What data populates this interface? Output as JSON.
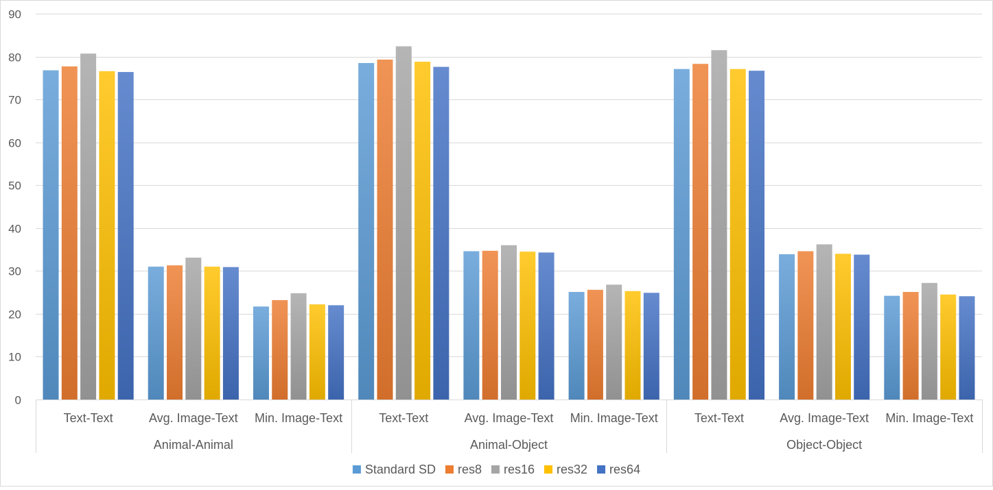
{
  "chart_data": {
    "type": "bar",
    "groups": [
      "Animal-Animal",
      "Animal-Object",
      "Object-Object"
    ],
    "subcategories": [
      "Text-Text",
      "Avg. Image-Text",
      "Min. Image-Text"
    ],
    "series": [
      {
        "name": "Standard SD",
        "color": "#5b9bd5",
        "values": [
          76.8,
          31.0,
          21.7,
          78.5,
          34.6,
          25.1,
          77.1,
          33.9,
          24.2
        ]
      },
      {
        "name": "res8",
        "color": "#ed7d31",
        "values": [
          77.7,
          31.3,
          23.2,
          79.3,
          34.7,
          25.6,
          78.3,
          34.6,
          25.1
        ]
      },
      {
        "name": "res16",
        "color": "#a5a5a5",
        "values": [
          80.7,
          33.1,
          24.8,
          82.4,
          36.0,
          26.8,
          81.5,
          36.2,
          27.2
        ]
      },
      {
        "name": "res32",
        "color": "#ffc000",
        "values": [
          76.6,
          31.0,
          22.2,
          78.8,
          34.5,
          25.3,
          77.1,
          34.0,
          24.5
        ]
      },
      {
        "name": "res64",
        "color": "#4472c4",
        "values": [
          76.4,
          30.9,
          22.0,
          77.6,
          34.3,
          24.9,
          76.7,
          33.8,
          24.1
        ]
      }
    ],
    "ylim": [
      0,
      90
    ],
    "yticks": [
      0,
      10,
      20,
      30,
      40,
      50,
      60,
      70,
      80,
      90
    ],
    "grid": true,
    "legend_position": "bottom"
  }
}
